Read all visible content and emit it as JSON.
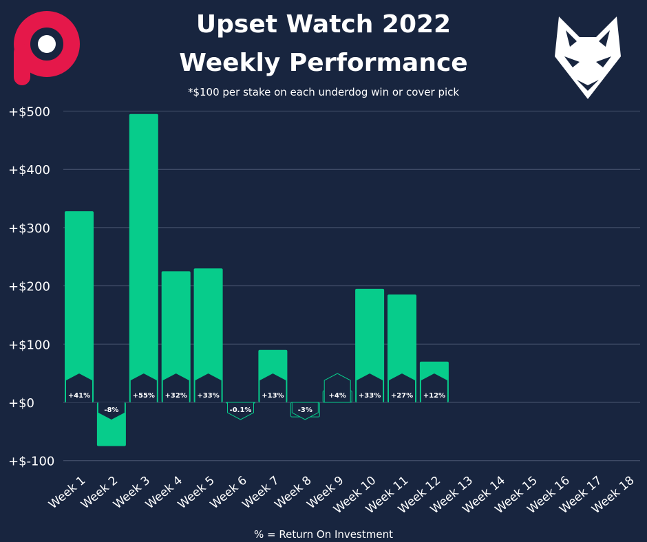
{
  "header": {
    "title_line1": "Upset Watch 2022",
    "title_line2": "Weekly Performance",
    "subtitle": "*$100 per stake on each underdog win or cover pick"
  },
  "footer": {
    "note": "% = Return On Investment"
  },
  "icons": {
    "left_logo": "p-logo-icon",
    "right_logo": "wolf-logo-icon"
  },
  "colors": {
    "background": "#18253f",
    "bar": "#07cc8b",
    "grid": "#4a5772",
    "text": "#ffffff",
    "logo_red": "#e5184a"
  },
  "chart_data": {
    "type": "bar",
    "categories": [
      "Week 1",
      "Week 2",
      "Week 3",
      "Week 4",
      "Week 5",
      "Week 6",
      "Week 7",
      "Week 8",
      "Week 9",
      "Week 10",
      "Week 11",
      "Week 12",
      "Week 13",
      "Week 14",
      "Week 15",
      "Week 16",
      "Week 17",
      "Week 18"
    ],
    "values": [
      328,
      -75,
      495,
      225,
      230,
      -0.4,
      90,
      -25,
      20,
      195,
      185,
      70,
      null,
      null,
      null,
      null,
      null,
      null
    ],
    "data_labels": [
      "+41%",
      "-8%",
      "+55%",
      "+32%",
      "+33%",
      "-0.1%",
      "+13%",
      "-3%",
      "+4%",
      "+33%",
      "+27%",
      "+12%",
      "",
      "",
      "",
      "",
      "",
      ""
    ],
    "ytick_labels": [
      "+$-100",
      "+$0",
      "+$100",
      "+$200",
      "+$300",
      "+$400",
      "+$500"
    ],
    "ytick_values": [
      -100,
      0,
      100,
      200,
      300,
      400,
      500
    ],
    "ylim": [
      -100,
      500
    ],
    "grid": true,
    "legend": "none"
  }
}
